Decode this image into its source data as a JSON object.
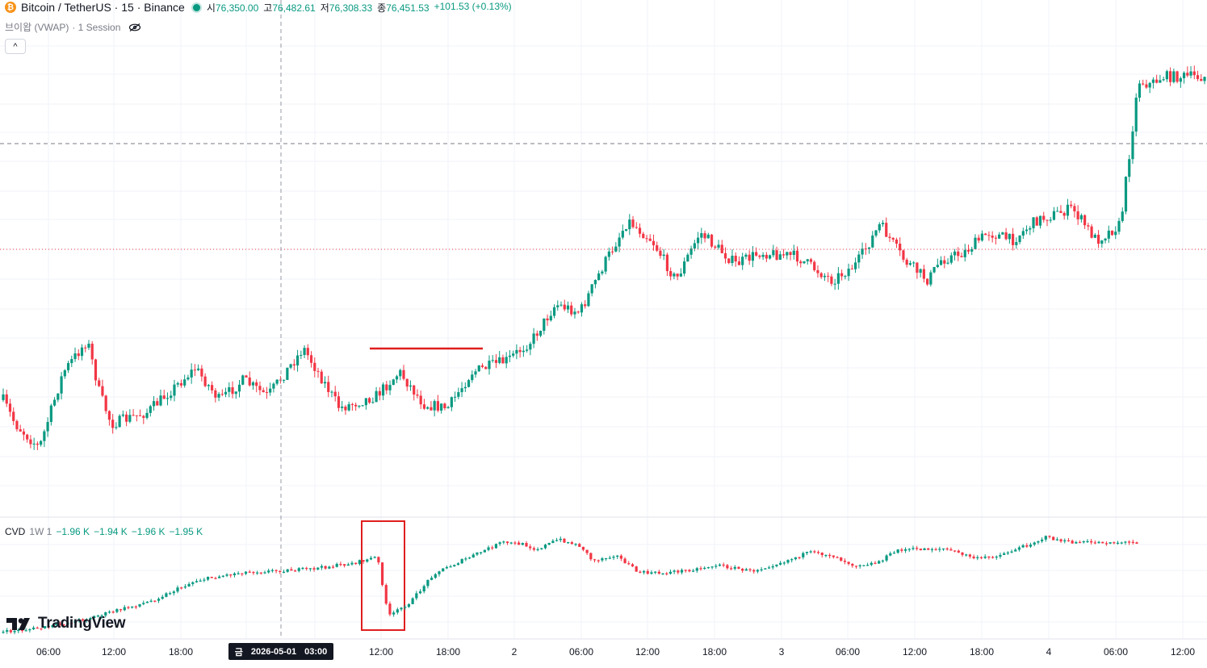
{
  "header": {
    "coin_icon": "bitcoin-icon",
    "title": "Bitcoin / TetherUS · 15 · Binance",
    "open_label": "시",
    "open": "76,350.00",
    "high_label": "고",
    "high": "76,482.61",
    "low_label": "저",
    "low": "76,308.33",
    "close_label": "종",
    "close": "76,451.53",
    "change": "+101.53 (+0.13%)"
  },
  "indicator": {
    "name": "브이왑 (VWAP)",
    "settings": "· 1 Session",
    "visibility_icon": "eye-off-icon"
  },
  "collapse_icon": "chevron-up-icon",
  "cvd": {
    "name": "CVD",
    "params": "1W 1",
    "values": [
      "−1.96 K",
      "−1.94 K",
      "−1.96 K",
      "−1.95 K"
    ]
  },
  "brand": "TradingView",
  "crosshair_date": {
    "day": "금",
    "date": "2026-05-01",
    "time": "03:00"
  },
  "colors": {
    "up": "#089981",
    "down": "#f23645",
    "annotation": "#e01e1e"
  },
  "chart_data": {
    "type": "candlestick",
    "symbol": "BTCUSDT",
    "timeframe": "15",
    "x_ticks": [
      "06:00",
      "12:00",
      "18:00",
      "금",
      "03:00",
      "12:00",
      "18:00",
      "2",
      "06:00",
      "12:00",
      "18:00",
      "3",
      "06:00",
      "12:00",
      "18:00",
      "4",
      "06:00",
      "12:00"
    ],
    "price_shape": [
      [
        0,
        0.18
      ],
      [
        0.01,
        0.12
      ],
      [
        0.03,
        0.06
      ],
      [
        0.05,
        0.25
      ],
      [
        0.07,
        0.33
      ],
      [
        0.08,
        0.2
      ],
      [
        0.09,
        0.12
      ],
      [
        0.12,
        0.15
      ],
      [
        0.16,
        0.26
      ],
      [
        0.18,
        0.18
      ],
      [
        0.2,
        0.23
      ],
      [
        0.22,
        0.19
      ],
      [
        0.25,
        0.31
      ],
      [
        0.28,
        0.16
      ],
      [
        0.31,
        0.19
      ],
      [
        0.33,
        0.25
      ],
      [
        0.35,
        0.17
      ],
      [
        0.37,
        0.16
      ],
      [
        0.39,
        0.25
      ],
      [
        0.42,
        0.28
      ],
      [
        0.44,
        0.33
      ],
      [
        0.46,
        0.42
      ],
      [
        0.48,
        0.4
      ],
      [
        0.5,
        0.52
      ],
      [
        0.52,
        0.63
      ],
      [
        0.54,
        0.58
      ],
      [
        0.56,
        0.48
      ],
      [
        0.58,
        0.6
      ],
      [
        0.61,
        0.52
      ],
      [
        0.63,
        0.55
      ],
      [
        0.66,
        0.54
      ],
      [
        0.69,
        0.48
      ],
      [
        0.71,
        0.52
      ],
      [
        0.73,
        0.62
      ],
      [
        0.75,
        0.53
      ],
      [
        0.77,
        0.48
      ],
      [
        0.78,
        0.53
      ],
      [
        0.8,
        0.55
      ],
      [
        0.82,
        0.6
      ],
      [
        0.84,
        0.58
      ],
      [
        0.86,
        0.63
      ],
      [
        0.89,
        0.66
      ],
      [
        0.91,
        0.58
      ],
      [
        0.93,
        0.62
      ],
      [
        0.945,
        0.98
      ],
      [
        0.955,
        0.97
      ],
      [
        0.965,
        0.99
      ]
    ],
    "cvd_shape": [
      [
        0,
        0.05
      ],
      [
        0.04,
        0.1
      ],
      [
        0.08,
        0.2
      ],
      [
        0.13,
        0.35
      ],
      [
        0.17,
        0.55
      ],
      [
        0.21,
        0.63
      ],
      [
        0.25,
        0.65
      ],
      [
        0.27,
        0.66
      ],
      [
        0.31,
        0.72
      ],
      [
        0.33,
        0.78
      ],
      [
        0.34,
        0.2
      ],
      [
        0.36,
        0.35
      ],
      [
        0.38,
        0.62
      ],
      [
        0.42,
        0.82
      ],
      [
        0.44,
        0.92
      ],
      [
        0.46,
        0.9
      ],
      [
        0.47,
        0.85
      ],
      [
        0.49,
        0.95
      ],
      [
        0.51,
        0.88
      ],
      [
        0.52,
        0.74
      ],
      [
        0.54,
        0.8
      ],
      [
        0.56,
        0.63
      ],
      [
        0.58,
        0.62
      ],
      [
        0.61,
        0.66
      ],
      [
        0.63,
        0.7
      ],
      [
        0.66,
        0.64
      ],
      [
        0.69,
        0.74
      ],
      [
        0.71,
        0.82
      ],
      [
        0.73,
        0.8
      ],
      [
        0.75,
        0.7
      ],
      [
        0.77,
        0.72
      ],
      [
        0.79,
        0.85
      ],
      [
        0.83,
        0.86
      ],
      [
        0.86,
        0.76
      ],
      [
        0.88,
        0.8
      ],
      [
        0.9,
        0.88
      ],
      [
        0.92,
        0.97
      ],
      [
        0.94,
        0.92
      ]
    ],
    "price_reference_line": true,
    "vwap_dotted_line": true,
    "annotations": [
      "horizontal red line at breakout level",
      "red box around CVD drop"
    ]
  }
}
